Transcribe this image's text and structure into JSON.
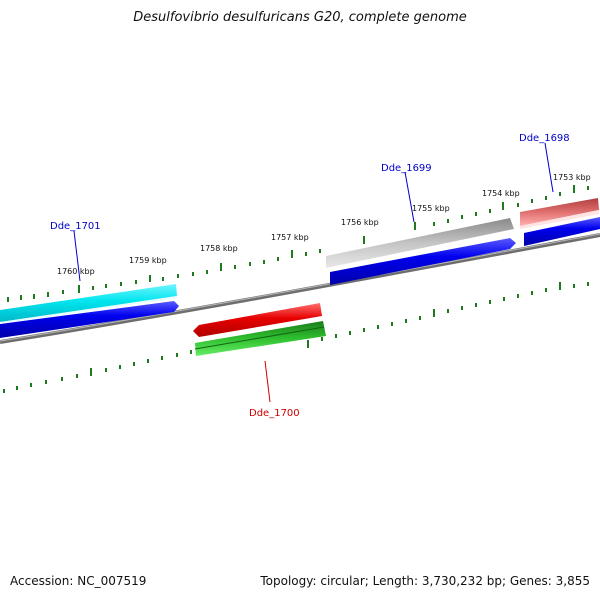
{
  "title": "Desulfovibrio desulfuricans G20, complete genome",
  "footer": {
    "accession": "Accession: NC_007519",
    "summary": "Topology: circular; Length: 3,730,232 bp; Genes: 3,855"
  },
  "scale": {
    "labels": [
      "1760 kbp",
      "1759 kbp",
      "1758 kbp",
      "1757 kbp",
      "1756 kbp",
      "1755 kbp",
      "1754 kbp",
      "1753 kbp"
    ]
  },
  "genes": [
    {
      "id": "Dde_1701",
      "label": "Dde_1701",
      "color": "#00e5ee",
      "label_color": "#0000cc"
    },
    {
      "id": "Dde_1700",
      "label": "Dde_1700",
      "color": "#e60000",
      "label_color": "#cc0000"
    },
    {
      "id": "Dde_1699",
      "label": "Dde_1699",
      "color": "#b0b0b0",
      "label_color": "#0000cc"
    },
    {
      "id": "Dde_1698",
      "label": "Dde_1698",
      "color": "#e07070",
      "label_color": "#0000cc"
    }
  ],
  "colors": {
    "cds_forward": "#0000ee",
    "rna_reverse": "#22aa22",
    "backbone": "#777777",
    "ticks": "#1f7a1f"
  }
}
